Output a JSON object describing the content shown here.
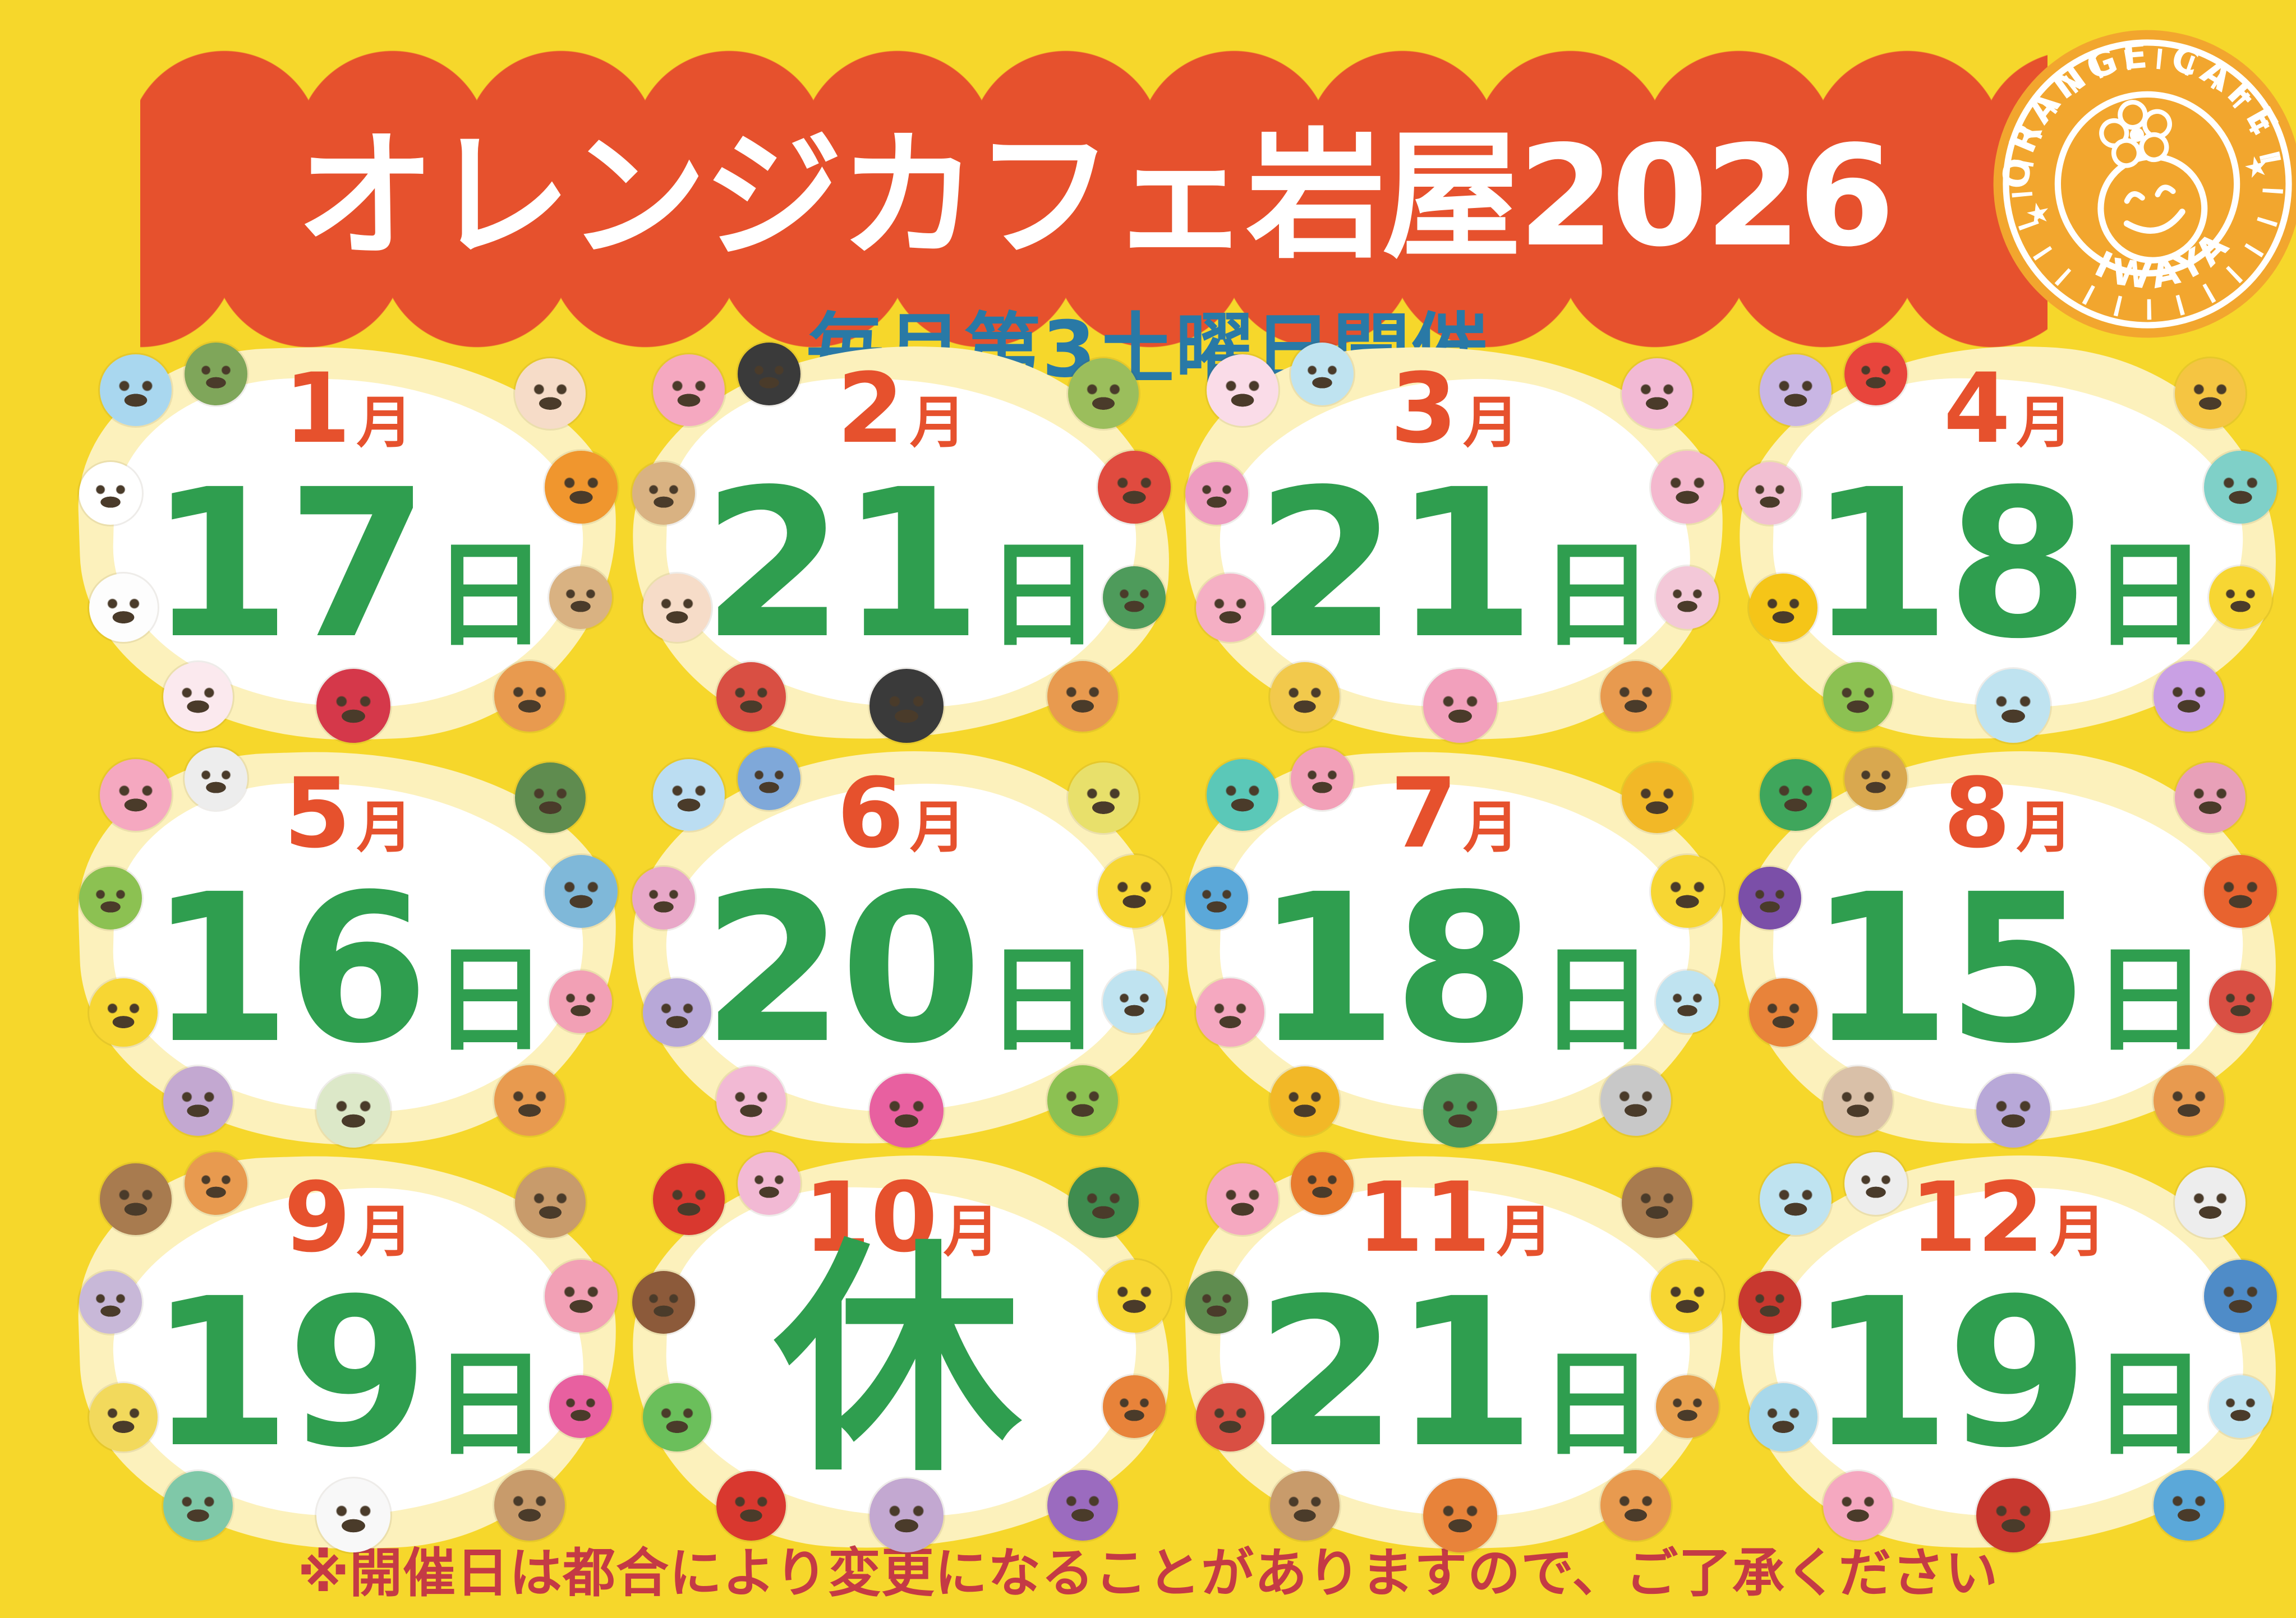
{
  "page": {
    "background": "#F6D72B"
  },
  "banner": {
    "title": "オレンジカフェ岩屋2026",
    "color": "#E6512D",
    "text_color": "#FFFFFF"
  },
  "logo": {
    "top_text": "ORANGE CAFE",
    "bottom_text": "IWAYA",
    "star": "★",
    "color": "#F2A62E"
  },
  "subtitle": {
    "text": "毎月第3土曜日開催",
    "color": "#2979A6"
  },
  "footer": {
    "text": "※開催日は都合により変更になることがありますので、ご了承ください",
    "color": "#C43A45"
  },
  "calendar": {
    "month_color": "#E6512D",
    "day_color": "#2F9E4F",
    "card_fill": "#FFFFFF",
    "card_border": "#FCF1BC",
    "months": [
      {
        "month": "1",
        "month_suffix": "月",
        "day": "17",
        "day_suffix": "日",
        "decorations": [
          {
            "name": "seal-icon",
            "color": "#A9D7EF"
          },
          {
            "name": "pine-sprig-icon",
            "color": "#7FA65A"
          },
          {
            "name": "rabbit-mochi-icon",
            "color": "#F6DCC8"
          },
          {
            "name": "otoshidama-envelope-icon",
            "color": "#FFFFFF"
          },
          {
            "name": "mandarin-orange-icon",
            "color": "#F0962E"
          },
          {
            "name": "kagami-mochi-icon",
            "color": "#FDFDFD"
          },
          {
            "name": "hagoita-paddle-icon",
            "color": "#D9B282"
          },
          {
            "name": "snowman-icon",
            "color": "#FBE9EE"
          },
          {
            "name": "camellia-flower-icon",
            "color": "#D5384A"
          },
          {
            "name": "bear-icon",
            "color": "#E89A4F"
          }
        ]
      },
      {
        "month": "2",
        "month_suffix": "月",
        "day": "21",
        "day_suffix": "日",
        "decorations": [
          {
            "name": "pig-with-ehomaki-icon",
            "color": "#F5A8C0"
          },
          {
            "name": "sushi-roll-icon",
            "color": "#3A3A3A"
          },
          {
            "name": "green-bird-icon",
            "color": "#9BBE5C"
          },
          {
            "name": "fuku-bean-box-icon",
            "color": "#D9B282"
          },
          {
            "name": "plum-blossom-icon",
            "color": "#E04B3F"
          },
          {
            "name": "okame-face-icon",
            "color": "#F6DCC8"
          },
          {
            "name": "green-oni-icon",
            "color": "#4E9B5B"
          },
          {
            "name": "red-oni-icon",
            "color": "#D94F43"
          },
          {
            "name": "ehomaki-roll-icon",
            "color": "#3A3A3A"
          },
          {
            "name": "bear-icon",
            "color": "#E89A4F"
          }
        ]
      },
      {
        "month": "3",
        "month_suffix": "月",
        "day": "21",
        "day_suffix": "日",
        "decorations": [
          {
            "name": "omamori-charm-icon",
            "color": "#FADCE8"
          },
          {
            "name": "konpeito-bag-icon",
            "color": "#BFE3F0"
          },
          {
            "name": "rabbit-icon",
            "color": "#F2B9D4"
          },
          {
            "name": "bonbori-lantern-icon",
            "color": "#EE9CC0"
          },
          {
            "name": "cherry-blossom-icon",
            "color": "#F4B8CE"
          },
          {
            "name": "peach-icon",
            "color": "#F5AFC4"
          },
          {
            "name": "strawberry-cake-icon",
            "color": "#F3C8D8"
          },
          {
            "name": "folding-fan-icon",
            "color": "#F2C94C"
          },
          {
            "name": "dancing-rabbit-icon",
            "color": "#F2A0BC"
          },
          {
            "name": "bear-with-flag-icon",
            "color": "#E89A4F"
          }
        ]
      },
      {
        "month": "4",
        "month_suffix": "月",
        "day": "18",
        "day_suffix": "日",
        "decorations": [
          {
            "name": "butterfly-icon",
            "color": "#C9B6E4"
          },
          {
            "name": "strawberry-icon",
            "color": "#E8453C"
          },
          {
            "name": "dandelion-icon",
            "color": "#F5C542"
          },
          {
            "name": "hanami-dango-icon",
            "color": "#F2BFD2"
          },
          {
            "name": "music-note-icon",
            "color": "#7FD0C8"
          },
          {
            "name": "bee-icon",
            "color": "#F5C518"
          },
          {
            "name": "duck-icon",
            "color": "#F7D633"
          },
          {
            "name": "frog-icon",
            "color": "#8CC152"
          },
          {
            "name": "chick-in-egg-icon",
            "color": "#BFE3F0"
          },
          {
            "name": "tulip-icon",
            "color": "#C9A0E4"
          }
        ]
      },
      {
        "month": "5",
        "month_suffix": "月",
        "day": "16",
        "day_suffix": "日",
        "decorations": [
          {
            "name": "pig-with-kabuto-icon",
            "color": "#F5A8C0"
          },
          {
            "name": "panda-icon",
            "color": "#EDEDED"
          },
          {
            "name": "kashiwa-leaf-icon",
            "color": "#5F8C4F"
          },
          {
            "name": "carp-streamer-green-icon",
            "color": "#8CC152"
          },
          {
            "name": "carp-streamer-blue-icon",
            "color": "#7FB8D9"
          },
          {
            "name": "duck-icon",
            "color": "#F7D633"
          },
          {
            "name": "carp-streamer-pink-icon",
            "color": "#F2A0B5"
          },
          {
            "name": "cat-icon",
            "color": "#C3A8D1"
          },
          {
            "name": "kashiwa-mochi-icon",
            "color": "#DCE8C8"
          },
          {
            "name": "bear-with-kabuto-icon",
            "color": "#E89A4F"
          }
        ]
      },
      {
        "month": "6",
        "month_suffix": "月",
        "day": "20",
        "day_suffix": "日",
        "decorations": [
          {
            "name": "teruteru-bozu-icon",
            "color": "#BBDDF2"
          },
          {
            "name": "elephant-icon",
            "color": "#7FA8D9"
          },
          {
            "name": "yellow-flower-icon",
            "color": "#E8E06B"
          },
          {
            "name": "hydrangea-pink-icon",
            "color": "#E8A8C8"
          },
          {
            "name": "duck-icon",
            "color": "#F7D633"
          },
          {
            "name": "hydrangea-purple-icon",
            "color": "#B8A8D8"
          },
          {
            "name": "cloud-icon",
            "color": "#BFE3F0"
          },
          {
            "name": "rabbit-icon",
            "color": "#F2B9D4"
          },
          {
            "name": "music-note-icon",
            "color": "#E860A0"
          },
          {
            "name": "frog-icon",
            "color": "#8CC152"
          }
        ]
      },
      {
        "month": "7",
        "month_suffix": "月",
        "day": "18",
        "day_suffix": "日",
        "decorations": [
          {
            "name": "popsicle-icon",
            "color": "#5BC8B8"
          },
          {
            "name": "shaved-ice-icon",
            "color": "#F2A0B8"
          },
          {
            "name": "sunflower-icon",
            "color": "#F2B827"
          },
          {
            "name": "dolphin-icon",
            "color": "#5BA8D9"
          },
          {
            "name": "duck-icon",
            "color": "#F7D633"
          },
          {
            "name": "pig-with-ice-cream-icon",
            "color": "#F5A8C0"
          },
          {
            "name": "cloud-icon",
            "color": "#BFE3F0"
          },
          {
            "name": "sunflower-icon",
            "color": "#F2B827"
          },
          {
            "name": "watermelon-icon",
            "color": "#4E9B5B"
          },
          {
            "name": "seagull-icon",
            "color": "#C8C8C8"
          }
        ]
      },
      {
        "month": "8",
        "month_suffix": "月",
        "day": "15",
        "day_suffix": "日",
        "decorations": [
          {
            "name": "cucumber-horse-icon",
            "color": "#3FA65C"
          },
          {
            "name": "shiba-inu-icon",
            "color": "#D9A84F"
          },
          {
            "name": "morning-glory-icon",
            "color": "#E8A0B8"
          },
          {
            "name": "eggplant-cow-icon",
            "color": "#7B4FA8"
          },
          {
            "name": "sun-icon",
            "color": "#E8632F"
          },
          {
            "name": "lantern-plant-icon",
            "color": "#E8833A"
          },
          {
            "name": "festival-fan-icon",
            "color": "#D94F43"
          },
          {
            "name": "mosquito-coil-pig-icon",
            "color": "#D9C0A8"
          },
          {
            "name": "water-balloon-icon",
            "color": "#B8A8D8"
          },
          {
            "name": "bear-icon",
            "color": "#E89A4F"
          }
        ]
      },
      {
        "month": "9",
        "month_suffix": "月",
        "day": "19",
        "day_suffix": "日",
        "decorations": [
          {
            "name": "mochi-mallet-icon",
            "color": "#A87B4F"
          },
          {
            "name": "bear-eating-mochi-icon",
            "color": "#E89A4F"
          },
          {
            "name": "mochi-usu-icon",
            "color": "#C89B6B"
          },
          {
            "name": "cloud-icon",
            "color": "#C8B8D8"
          },
          {
            "name": "cat-eating-mochi-icon",
            "color": "#F2A0B5"
          },
          {
            "name": "full-moon-icon",
            "color": "#F2D95C"
          },
          {
            "name": "music-note-icon",
            "color": "#E860A0"
          },
          {
            "name": "green-dog-icon",
            "color": "#7FC8A8"
          },
          {
            "name": "tsukimi-dango-icon",
            "color": "#F8F8F8"
          },
          {
            "name": "dango-stand-icon",
            "color": "#C89B6B"
          }
        ]
      },
      {
        "month": "10",
        "month_suffix": "月",
        "day": "休",
        "day_suffix": "",
        "decorations": [
          {
            "name": "apple-icon",
            "color": "#D9382F"
          },
          {
            "name": "rabbit-icon",
            "color": "#F2B9D4"
          },
          {
            "name": "green-pepper-icon",
            "color": "#3F8C4F"
          },
          {
            "name": "chestnut-icon",
            "color": "#8C5A3A"
          },
          {
            "name": "duck-icon",
            "color": "#F7D633"
          },
          {
            "name": "witch-hat-monster-icon",
            "color": "#6BBF5B"
          },
          {
            "name": "pumpkin-icon",
            "color": "#E8833A"
          },
          {
            "name": "candy-apple-icon",
            "color": "#D9382F"
          },
          {
            "name": "cat-icon",
            "color": "#C3A8D1"
          },
          {
            "name": "sweet-potato-icon",
            "color": "#9B6BBF"
          }
        ]
      },
      {
        "month": "11",
        "month_suffix": "月",
        "day": "21",
        "day_suffix": "日",
        "decorations": [
          {
            "name": "pig-icon",
            "color": "#F5A8C0"
          },
          {
            "name": "persimmon-icon",
            "color": "#E87B2F"
          },
          {
            "name": "dog-icon",
            "color": "#A87B4F"
          },
          {
            "name": "green-leaf-icon",
            "color": "#5F8C4F"
          },
          {
            "name": "duck-icon",
            "color": "#F7D633"
          },
          {
            "name": "maple-leaf-icon",
            "color": "#D94F43"
          },
          {
            "name": "autumn-leaf-icon",
            "color": "#E8A04F"
          },
          {
            "name": "persimmon-basket-icon",
            "color": "#C89B6B"
          },
          {
            "name": "maple-leaf-orange-icon",
            "color": "#E8833A"
          },
          {
            "name": "bear-icon",
            "color": "#E89A4F"
          }
        ]
      },
      {
        "month": "12",
        "month_suffix": "月",
        "day": "19",
        "day_suffix": "日",
        "decorations": [
          {
            "name": "snowball-icon",
            "color": "#BFE3F0"
          },
          {
            "name": "snowman-green-hat-icon",
            "color": "#EDEDED"
          },
          {
            "name": "snowman-earmuffs-icon",
            "color": "#EDEDED"
          },
          {
            "name": "holly-berries-icon",
            "color": "#C8382F"
          },
          {
            "name": "snowflake-icon",
            "color": "#4F8CC8"
          },
          {
            "name": "winter-cat-icon",
            "color": "#A8D8EA"
          },
          {
            "name": "snowman-blue-hat-icon",
            "color": "#BFE3F0"
          },
          {
            "name": "pig-with-santa-hat-icon",
            "color": "#F5A8C0"
          },
          {
            "name": "berries-icon",
            "color": "#C8382F"
          },
          {
            "name": "mitten-icon",
            "color": "#5BA8D9"
          }
        ]
      }
    ]
  }
}
